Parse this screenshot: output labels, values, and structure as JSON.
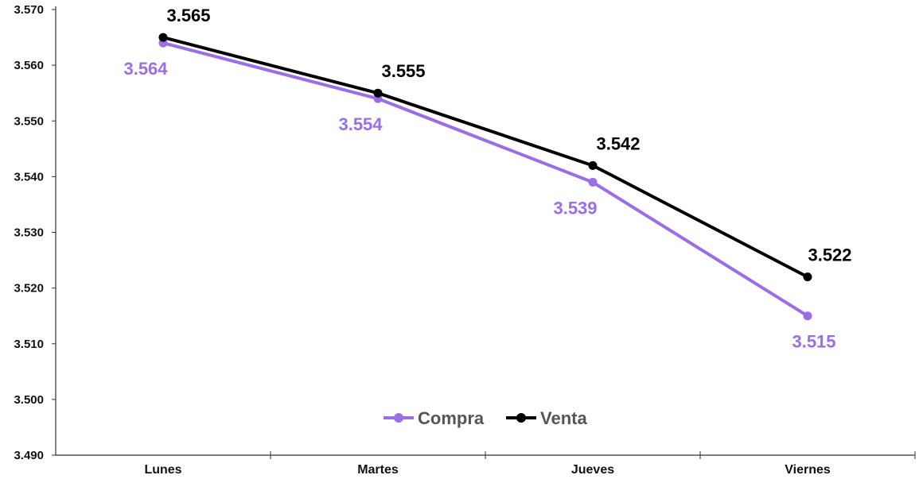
{
  "chart_data": {
    "type": "line",
    "title": "",
    "xlabel": "",
    "ylabel": "",
    "categories": [
      "Lunes",
      "Martes",
      "Jueves",
      "Viernes"
    ],
    "series": [
      {
        "name": "Compra",
        "color": "#9b6ee8",
        "values": [
          3.564,
          3.554,
          3.539,
          3.515
        ],
        "labels": [
          "3.564",
          "3.554",
          "3.539",
          "3.515"
        ]
      },
      {
        "name": "Venta",
        "color": "#000000",
        "values": [
          3.565,
          3.555,
          3.542,
          3.522
        ],
        "labels": [
          "3.565",
          "3.555",
          "3.542",
          "3.522"
        ]
      }
    ],
    "ylim": [
      3.49,
      3.57
    ],
    "yticks": [
      3.49,
      3.5,
      3.51,
      3.52,
      3.53,
      3.54,
      3.55,
      3.56,
      3.57
    ],
    "ytick_labels": [
      "3.490",
      "3.500",
      "3.510",
      "3.520",
      "3.530",
      "3.540",
      "3.550",
      "3.560",
      "3.570"
    ],
    "grid": false,
    "legend_position": "bottom-center",
    "marker": "circle"
  }
}
